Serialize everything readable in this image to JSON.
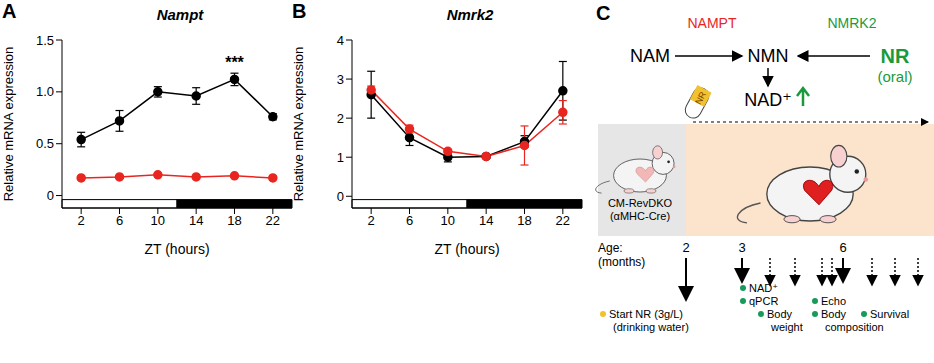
{
  "chart_data": [
    {
      "panel": "A",
      "type": "line",
      "title": "Nampt",
      "x_label": "ZT (hours)",
      "y_label": "Relative mRNA expression",
      "x": [
        2,
        6,
        10,
        14,
        18,
        22
      ],
      "xlim": [
        0,
        24
      ],
      "xticks": [
        2,
        6,
        10,
        14,
        18,
        22
      ],
      "ylim": [
        -0.12,
        1.5
      ],
      "yticks": [
        0,
        0.5,
        {
          "value": 1,
          "label": "1.0"
        },
        1.5
      ],
      "grid": false,
      "marker": "circle",
      "light_dark": {
        "light": [
          0,
          12
        ],
        "dark": [
          12,
          24
        ]
      },
      "annotations": [
        {
          "text": "***",
          "x": 18
        }
      ],
      "series": [
        {
          "color": "#000000",
          "values": [
            0.54,
            0.72,
            1.0,
            0.96,
            1.12,
            0.76
          ],
          "errors": [
            0.07,
            0.1,
            0.05,
            0.08,
            0.06,
            0.03
          ]
        },
        {
          "color": "#e8261f",
          "values": [
            0.17,
            0.18,
            0.2,
            0.18,
            0.19,
            0.17
          ],
          "errors": [
            0.01,
            0.01,
            0.01,
            0.01,
            0.01,
            0.01
          ]
        }
      ]
    },
    {
      "panel": "B",
      "type": "line",
      "title": "Nmrk2",
      "x_label": "ZT (hours)",
      "y_label": "Relative mRNA expression",
      "x": [
        2,
        6,
        10,
        14,
        18,
        22
      ],
      "xlim": [
        0,
        24
      ],
      "xticks": [
        2,
        6,
        10,
        14,
        18,
        22
      ],
      "ylim": [
        -0.3,
        4
      ],
      "yticks": [
        0,
        1,
        2,
        3,
        4
      ],
      "grid": false,
      "marker": "circle",
      "light_dark": {
        "light": [
          0,
          12
        ],
        "dark": [
          12,
          24
        ]
      },
      "series": [
        {
          "color": "#000000",
          "values": [
            2.6,
            1.5,
            1.0,
            1.02,
            1.4,
            2.7
          ],
          "errors": [
            0.6,
            0.2,
            0.12,
            0.05,
            0.15,
            0.75
          ]
        },
        {
          "color": "#e8261f",
          "values": [
            2.72,
            1.72,
            1.15,
            1.02,
            1.3,
            2.15
          ],
          "errors": [
            0.1,
            0.1,
            0.05,
            0.05,
            0.5,
            0.3
          ]
        }
      ]
    }
  ],
  "diagram": {
    "panel": "C",
    "pathway": {
      "substrate": "NAM",
      "intermediate": "NMN",
      "product": "NAD⁺",
      "supplement": "NR",
      "supplement_note": "(oral)",
      "enzyme_left": {
        "text": "NAMPT",
        "color": "#e8261f"
      },
      "enzyme_right": {
        "text": "NMRK2",
        "color": "#1a9a3a"
      }
    },
    "pill": "NR",
    "mouse": {
      "line": "CM-RevDKO",
      "driver": "(αMHC-Cre)"
    },
    "timeline": {
      "age_label": "Age:",
      "age_unit": "(months)",
      "ages": [
        2,
        3,
        6
      ],
      "events": [
        {
          "lines": [
            "Start NR (3g/L)",
            "(drinking water)"
          ],
          "color": "#f2c12e"
        },
        {
          "lines": [
            "NAD⁺",
            "qPCR"
          ],
          "color": "#1a9a5a"
        },
        {
          "lines": [
            "Body",
            "weight"
          ],
          "color": "#1a9a5a"
        },
        {
          "lines": [
            "Echo",
            "Body",
            "composition"
          ],
          "color": "#1a9a5a"
        },
        {
          "lines": [
            "Survival"
          ],
          "color": "#1a9a5a"
        }
      ]
    }
  }
}
